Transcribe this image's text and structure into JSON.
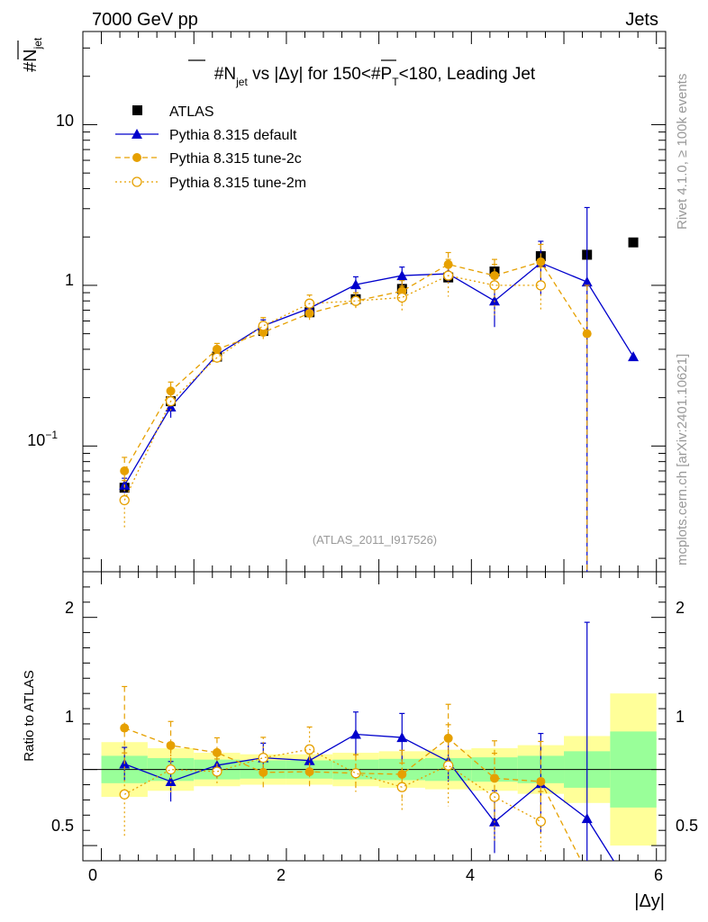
{
  "header": {
    "left": "7000 GeV pp",
    "right": "Jets"
  },
  "side_labels": {
    "rivet": "Rivet 4.1.0, ≥ 100k events",
    "mcplots": "mcplots.cern.ch [arXiv:2401.10621]"
  },
  "chart_data": {
    "type": "scatter",
    "title": "#N_jet vs |Δy| for 150<#P_T<180, Leading Jet",
    "title_parts": {
      "p1": "#N",
      "p1_sub": "jet",
      "p2": " vs |Δy| for 150<#",
      "p3": "P",
      "p3_sub": "T",
      "p4": "<180, Leading Jet"
    },
    "analysis_tag": "(ATLAS_2011_I917526)",
    "ylabel": "#N_jet",
    "ylabel_parts": {
      "main": "#N",
      "sub": "jet"
    },
    "ratio_ylabel": "Ratio to ATLAS",
    "xlabel": "|Δy|",
    "xlim": [
      -0.2,
      6.1
    ],
    "ylim": [
      0.0165,
      38
    ],
    "ylog": true,
    "ratio_ylim": [
      0.4,
      2.3
    ],
    "x_ticks": [
      0,
      2,
      4,
      6
    ],
    "x_tick_labels": [
      "0",
      "2",
      "4",
      "6"
    ],
    "y_ticks": [
      0.1,
      1,
      10
    ],
    "y_tick_labels": {
      "tenth_base": "10",
      "tenth_exp": "−1",
      "one": "1",
      "ten": "10"
    },
    "ratio_ticks": [
      0.5,
      1,
      2
    ],
    "ratio_tick_labels": [
      "0.5",
      "1",
      "2"
    ],
    "data": {
      "name": "ATLAS",
      "x": [
        0.25,
        0.75,
        1.25,
        1.75,
        2.25,
        2.75,
        3.25,
        3.75,
        4.25,
        4.75,
        5.25,
        5.75
      ],
      "y": [
        0.055,
        0.19,
        0.36,
        0.52,
        0.68,
        0.82,
        0.95,
        1.12,
        1.22,
        1.52,
        1.55,
        1.85
      ],
      "band_inner": [
        0.09,
        0.075,
        0.065,
        0.06,
        0.06,
        0.065,
        0.07,
        0.075,
        0.08,
        0.09,
        0.12,
        0.25
      ],
      "band_outer": [
        0.18,
        0.14,
        0.11,
        0.1,
        0.1,
        0.11,
        0.12,
        0.13,
        0.14,
        0.16,
        0.22,
        0.5
      ]
    },
    "series": [
      {
        "name": "Pythia 8.315 default",
        "color": "#0000cc",
        "marker": "triangle",
        "y": [
          0.057,
          0.175,
          0.37,
          0.56,
          0.72,
          1.01,
          1.15,
          1.18,
          0.8,
          1.38,
          1.05,
          0.36
        ],
        "err": [
          0.006,
          0.025,
          0.03,
          0.05,
          0.06,
          0.12,
          0.15,
          0.15,
          0.25,
          0.5,
          2.0,
          0.0
        ]
      },
      {
        "name": "Pythia 8.315 tune-2c",
        "color": "#e6a000",
        "marker": "circle",
        "y": [
          0.07,
          0.22,
          0.4,
          0.51,
          0.67,
          0.8,
          0.92,
          1.35,
          1.15,
          1.4,
          0.5,
          null
        ],
        "err": [
          0.015,
          0.03,
          0.035,
          0.06,
          0.08,
          0.1,
          0.15,
          0.25,
          0.3,
          0.4,
          0.5,
          null
        ]
      },
      {
        "name": "Pythia 8.315 tune-2m",
        "color": "#e6a000",
        "marker": "open-circle",
        "y": [
          0.046,
          0.19,
          0.355,
          0.56,
          0.77,
          0.8,
          0.84,
          1.15,
          1.0,
          1.0,
          null,
          null
        ],
        "err": [
          0.015,
          0.03,
          0.03,
          0.07,
          0.1,
          0.1,
          0.15,
          0.3,
          0.35,
          0.3,
          null,
          null
        ]
      }
    ]
  }
}
